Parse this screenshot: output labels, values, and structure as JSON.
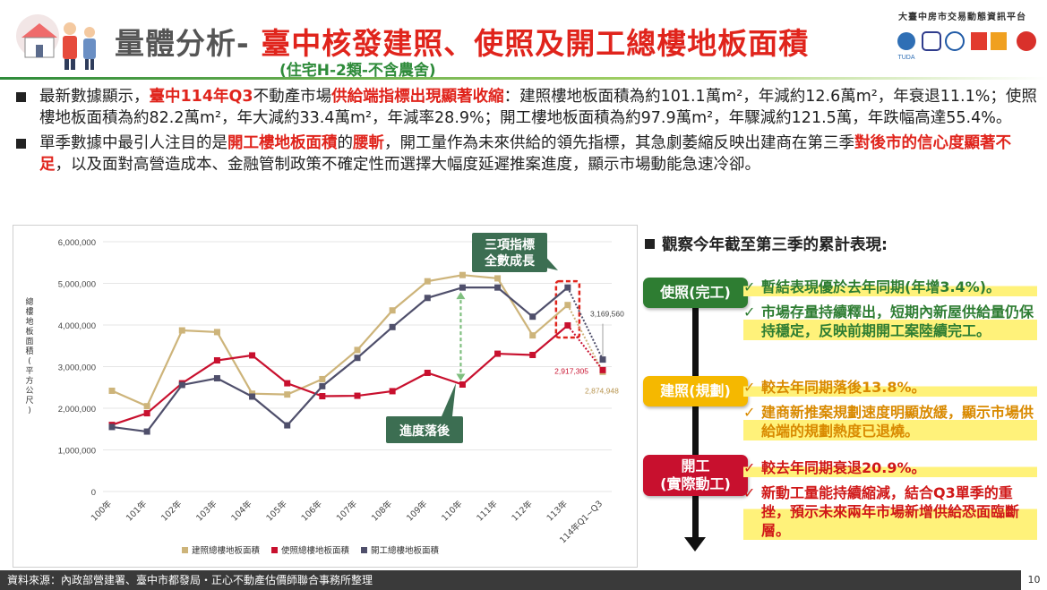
{
  "header": {
    "title_prefix": "量體分析-",
    "title_main": "臺中核發建照、使照及開工總樓地板面積",
    "subtitle": "(住宅H-2類-不含農舍)",
    "org_name": "大臺中房市交易動態資訊平台",
    "logo_text": "TUDA"
  },
  "bullets": [
    {
      "segments": [
        {
          "t": "最新數據顯示，",
          "red": false
        },
        {
          "t": "臺中114年Q3",
          "red": true
        },
        {
          "t": "不動產市場",
          "red": false
        },
        {
          "t": "供給端指標出現顯著收縮",
          "red": true
        },
        {
          "t": "：建照樓地板面積為約101.1萬m²，年減約12.6萬m²，年衰退11.1%；使照樓地板面積為約82.2萬m²，年大減約33.4萬m²，年減率28.9%；開工樓地板面積為約97.9萬m²，年驟減約121.5萬，年跌幅高達55.4%。",
          "red": false
        }
      ]
    },
    {
      "segments": [
        {
          "t": "單季數據中最引人注目的是",
          "red": false
        },
        {
          "t": "開工樓地板面積",
          "red": true
        },
        {
          "t": "的",
          "red": false
        },
        {
          "t": "腰斬",
          "red": true
        },
        {
          "t": "，開工量作為未來供給的領先指標，其急劇萎縮反映出建商在第三季",
          "red": false
        },
        {
          "t": "對後市的信心度顯著不足",
          "red": true
        },
        {
          "t": "，以及面對高營造成本、金融管制政策不確定性而選擇大幅度延遲推案進度，顯示市場動能急速冷卻。",
          "red": false
        }
      ]
    }
  ],
  "chart_data": {
    "type": "line",
    "ylabel": "總樓地板面積(平方公尺)",
    "ylim": [
      0,
      6000000
    ],
    "yticks": [
      "0",
      "1,000,000",
      "2,000,000",
      "3,000,000",
      "4,000,000",
      "5,000,000",
      "6,000,000"
    ],
    "categories": [
      "100年",
      "101年",
      "102年",
      "103年",
      "104年",
      "105年",
      "106年",
      "107年",
      "108年",
      "109年",
      "110年",
      "111年",
      "112年",
      "113年",
      "114年Q1~Q3"
    ],
    "series": [
      {
        "name": "建照總樓地板面積",
        "color": "#cdb47a",
        "values": [
          2420000,
          2050000,
          3870000,
          3830000,
          2350000,
          2330000,
          2700000,
          3400000,
          4350000,
          5050000,
          5200000,
          5120000,
          3750000,
          4480000,
          2874948
        ]
      },
      {
        "name": "使照總樓地板面積",
        "color": "#c8102e",
        "values": [
          1600000,
          1880000,
          2600000,
          3150000,
          3270000,
          2600000,
          2290000,
          2300000,
          2410000,
          2850000,
          2570000,
          3310000,
          3280000,
          3990000,
          2917305
        ]
      },
      {
        "name": "開工總樓地板面積",
        "color": "#4f4f6b",
        "values": [
          1550000,
          1440000,
          2560000,
          2720000,
          2280000,
          1590000,
          2530000,
          3210000,
          3950000,
          4650000,
          4900000,
          4900000,
          4200000,
          4900000,
          3169560
        ]
      }
    ],
    "data_labels": {
      "s3_last": "3,169,560",
      "s2_last": "2,917,305",
      "s1_last": "2,874,948"
    },
    "callouts": {
      "top": "三項指標\n全數成長",
      "bottom": "進度落後"
    }
  },
  "right_panel": {
    "heading": "觀察今年截至第三季的累計表現:",
    "tags": {
      "occupancy": "使照(完工)",
      "building": "建照(規劃)",
      "start": "開工\n(實際動工)"
    },
    "items": {
      "occ1": "暫結表現優於去年同期(年增3.4%)。",
      "occ2": "市場存量持續釋出，短期內新屋供給量仍保持穩定，反映前期開工案陸續完工。",
      "bld1": "較去年同期落後13.8%。",
      "bld2": "建商新推案規劃速度明顯放緩，顯示市場供給端的規劃熱度已退燒。",
      "st1": "較去年同期衰退20.9%。",
      "st2": "新動工量能持續縮減，結合Q3單季的重挫，預示未來兩年市場新增供給恐面臨斷層。"
    },
    "check": "✓"
  },
  "footer": {
    "source": "資料來源：內政部營建署、臺中市都發局・正心不動產估價師聯合事務所整理",
    "page": "10"
  }
}
